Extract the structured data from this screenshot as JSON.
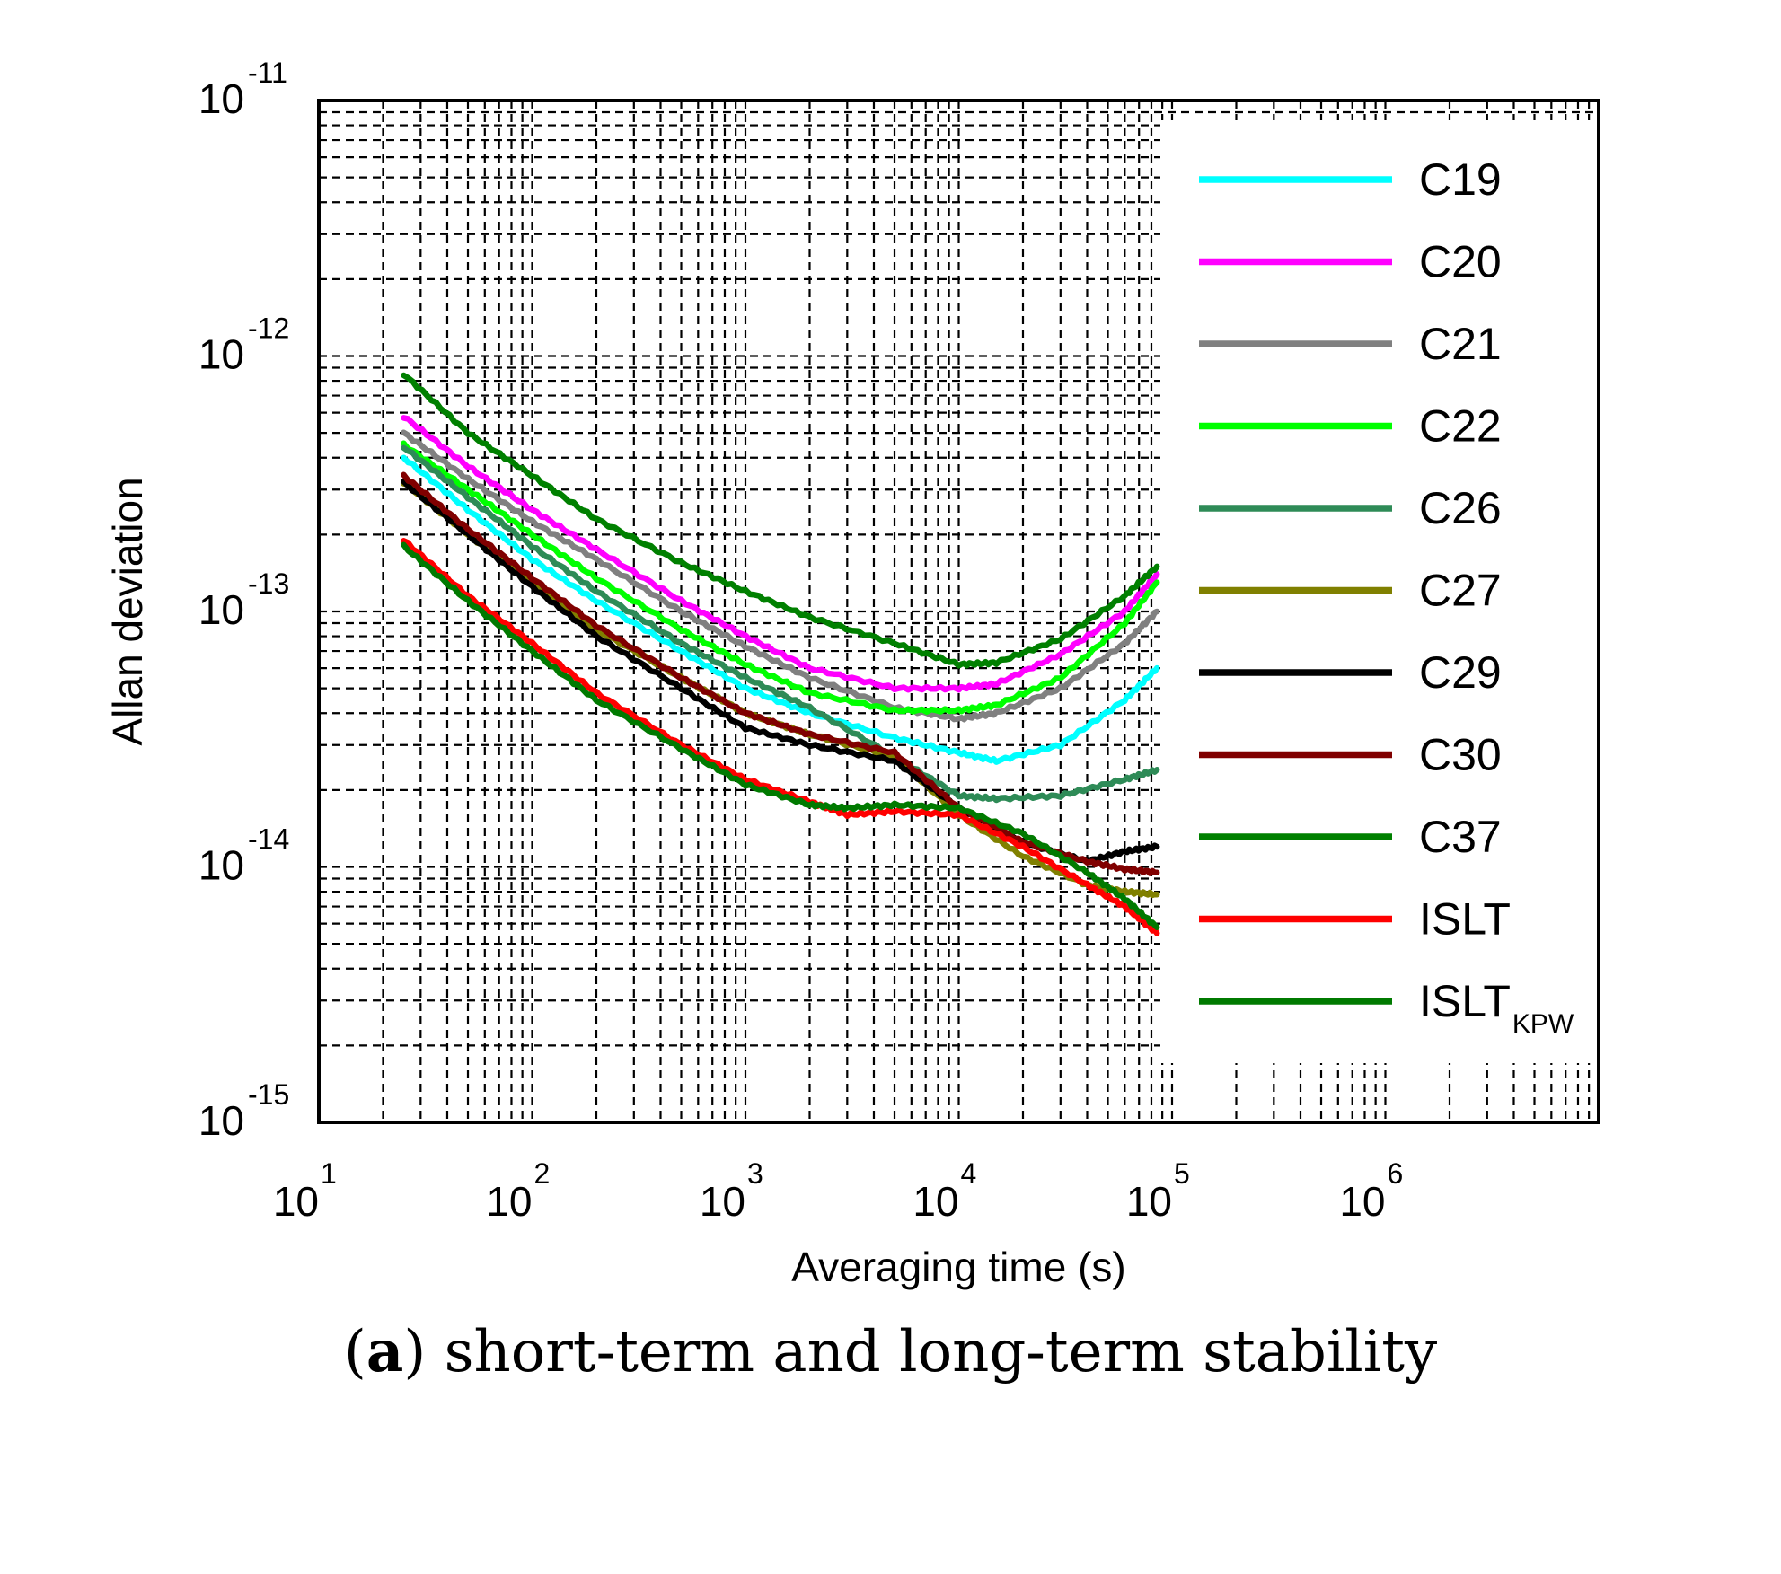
{
  "chart_data": {
    "type": "line",
    "xscale": "log",
    "yscale": "log",
    "xlabel": "Averaging time (s)",
    "ylabel": "Allan deviation",
    "xlim": [
      10,
      10000000
    ],
    "ylim": [
      1e-15,
      1e-11
    ],
    "xticks": [
      {
        "base": "10",
        "exp": "1"
      },
      {
        "base": "10",
        "exp": "2"
      },
      {
        "base": "10",
        "exp": "3"
      },
      {
        "base": "10",
        "exp": "4"
      },
      {
        "base": "10",
        "exp": "5"
      },
      {
        "base": "10",
        "exp": "6"
      }
    ],
    "yticks": [
      {
        "base": "10",
        "exp": "-15"
      },
      {
        "base": "10",
        "exp": "-14"
      },
      {
        "base": "10",
        "exp": "-13"
      },
      {
        "base": "10",
        "exp": "-12"
      },
      {
        "base": "10",
        "exp": "-11"
      }
    ],
    "grid": true,
    "legend_position": "right",
    "series": [
      {
        "name": "C19",
        "color": "#00ffff",
        "x": [
          25,
          50,
          100,
          200,
          500,
          1000,
          2000,
          5000,
          10000,
          15000,
          30000,
          60000,
          85000
        ],
        "y": [
          4e-13,
          2.5e-13,
          1.6e-13,
          1.1e-13,
          7e-14,
          5e-14,
          4e-14,
          3.2e-14,
          2.8e-14,
          2.6e-14,
          3e-14,
          4.5e-14,
          6e-14
        ]
      },
      {
        "name": "C20",
        "color": "#ff00ff",
        "x": [
          25,
          50,
          100,
          200,
          500,
          1000,
          2000,
          5000,
          10000,
          15000,
          30000,
          60000,
          85000
        ],
        "y": [
          5.8e-13,
          3.7e-13,
          2.5e-13,
          1.75e-13,
          1.1e-13,
          8e-14,
          6e-14,
          5e-14,
          5e-14,
          5.2e-14,
          6.8e-14,
          1e-13,
          1.4e-13
        ]
      },
      {
        "name": "C21",
        "color": "#808080",
        "x": [
          25,
          50,
          100,
          200,
          500,
          1000,
          2000,
          5000,
          10000,
          15000,
          30000,
          60000,
          85000
        ],
        "y": [
          5e-13,
          3.3e-13,
          2.25e-13,
          1.6e-13,
          1e-13,
          7.3e-14,
          5.5e-14,
          4.2e-14,
          3.8e-14,
          4e-14,
          5e-14,
          7.5e-14,
          1e-13
        ]
      },
      {
        "name": "C22",
        "color": "#00ff00",
        "x": [
          25,
          50,
          100,
          200,
          500,
          1000,
          2000,
          5000,
          10000,
          15000,
          30000,
          60000,
          85000
        ],
        "y": [
          4.5e-13,
          3e-13,
          2e-13,
          1.35e-13,
          8.5e-14,
          6.2e-14,
          4.8e-14,
          4.1e-14,
          4.1e-14,
          4.3e-14,
          5.5e-14,
          9e-14,
          1.3e-13
        ]
      },
      {
        "name": "C26",
        "color": "#2e8b57",
        "x": [
          25,
          50,
          100,
          200,
          500,
          1000,
          2000,
          5000,
          10000,
          15000,
          30000,
          60000,
          85000
        ],
        "y": [
          4.4e-13,
          2.8e-13,
          1.8e-13,
          1.2e-13,
          7.5e-14,
          5.5e-14,
          4.2e-14,
          2.7e-14,
          1.9e-14,
          1.85e-14,
          1.9e-14,
          2.2e-14,
          2.4e-14
        ]
      },
      {
        "name": "C27",
        "color": "#808000",
        "x": [
          25,
          50,
          100,
          200,
          500,
          1000,
          2000,
          5000,
          10000,
          20000,
          40000,
          60000,
          85000
        ],
        "y": [
          3.2e-13,
          2e-13,
          1.3e-13,
          8.5e-14,
          5.5e-14,
          4e-14,
          3.3e-14,
          2.7e-14,
          1.6e-14,
          1.1e-14,
          8.5e-15,
          8e-15,
          7.8e-15
        ]
      },
      {
        "name": "C29",
        "color": "#000000",
        "x": [
          25,
          50,
          100,
          200,
          500,
          1000,
          2000,
          5000,
          10000,
          20000,
          40000,
          60000,
          85000
        ],
        "y": [
          3.2e-13,
          2e-13,
          1.25e-13,
          8e-14,
          5e-14,
          3.5e-14,
          3e-14,
          2.6e-14,
          1.7e-14,
          1.25e-14,
          1.05e-14,
          1.15e-14,
          1.2e-14
        ]
      },
      {
        "name": "C30",
        "color": "#800000",
        "x": [
          25,
          50,
          100,
          200,
          500,
          1000,
          2000,
          5000,
          10000,
          20000,
          40000,
          60000,
          85000
        ],
        "y": [
          3.4e-13,
          2.1e-13,
          1.35e-13,
          8.8e-14,
          5.5e-14,
          4e-14,
          3.3e-14,
          2.8e-14,
          1.7e-14,
          1.25e-14,
          1.05e-14,
          9.8e-15,
          9.5e-15
        ]
      },
      {
        "name": "C37",
        "color": "#008000",
        "x": [
          25,
          50,
          100,
          200,
          500,
          1000,
          2000,
          5000,
          10000,
          15000,
          30000,
          60000,
          85000
        ],
        "y": [
          8.5e-13,
          5e-13,
          3.4e-13,
          2.3e-13,
          1.55e-13,
          1.2e-13,
          9.5e-14,
          7.5e-14,
          6.2e-14,
          6.3e-14,
          7.8e-14,
          1.15e-13,
          1.5e-13
        ]
      },
      {
        "name": "ISLT",
        "color": "#ff0000",
        "x": [
          25,
          50,
          100,
          200,
          500,
          1000,
          2000,
          3000,
          5000,
          10000,
          20000,
          40000,
          60000,
          85000
        ],
        "y": [
          1.9e-13,
          1.15e-13,
          7.5e-14,
          4.8e-14,
          3e-14,
          2.2e-14,
          1.8e-14,
          1.6e-14,
          1.65e-14,
          1.6e-14,
          1.2e-14,
          8.5e-15,
          7e-15,
          5.5e-15
        ]
      },
      {
        "name": "ISLT",
        "sub": "KPW",
        "color": "#007a00",
        "x": [
          25,
          50,
          100,
          200,
          500,
          1000,
          2000,
          3000,
          5000,
          10000,
          20000,
          40000,
          60000,
          85000
        ],
        "y": [
          1.8e-13,
          1.1e-13,
          7e-14,
          4.5e-14,
          2.9e-14,
          2.1e-14,
          1.75e-14,
          1.7e-14,
          1.75e-14,
          1.7e-14,
          1.35e-14,
          9.5e-15,
          7.5e-15,
          5.8e-15
        ]
      }
    ]
  },
  "caption": {
    "label": "a",
    "text": " short-term and long-term stability"
  }
}
